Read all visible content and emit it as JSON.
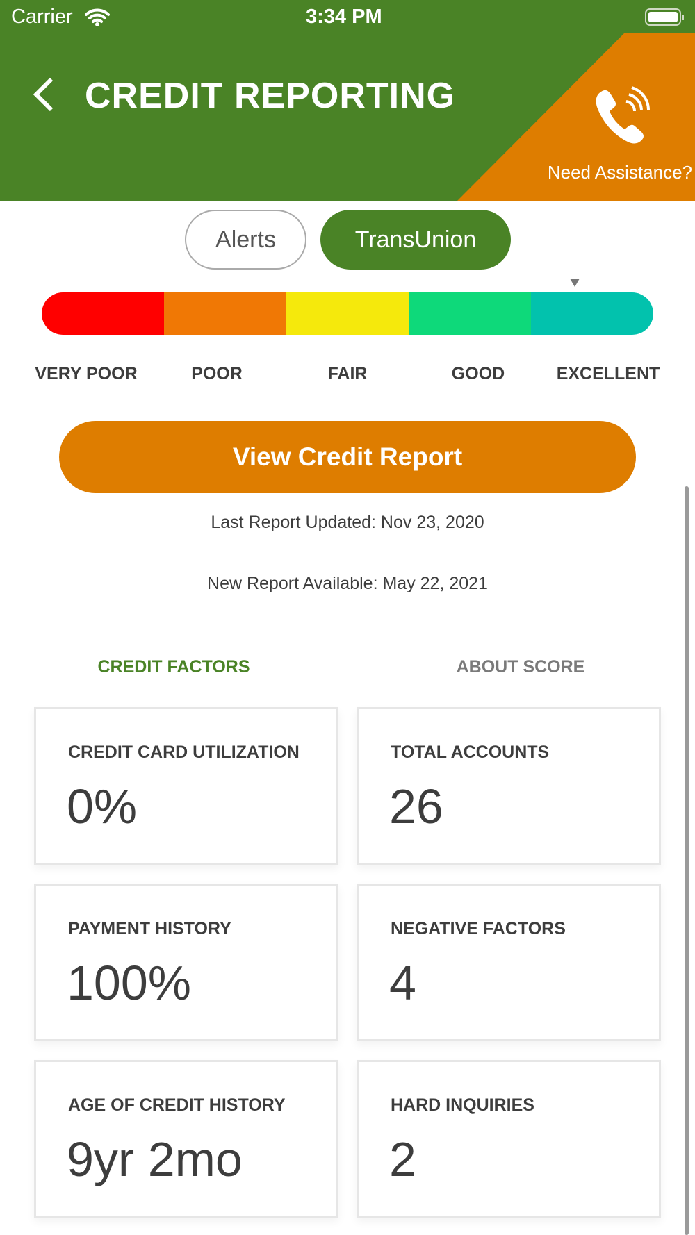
{
  "status_bar": {
    "carrier": "Carrier",
    "time": "3:34 PM"
  },
  "header": {
    "title": "CREDIT REPORTING",
    "assistance": "Need Assistance?",
    "colors": {
      "green": "#4a8326",
      "orange": "#de7d00"
    }
  },
  "tabs": [
    {
      "label": "Alerts",
      "active": false
    },
    {
      "label": "TransUnion",
      "active": true
    }
  ],
  "score_scale": {
    "levels": [
      {
        "label": "VERY POOR",
        "color": "#ff0000"
      },
      {
        "label": "POOR",
        "color": "#f07805"
      },
      {
        "label": "FAIR",
        "color": "#f5e90c"
      },
      {
        "label": "GOOD",
        "color": "#0ed97a"
      },
      {
        "label": "EXCELLENT",
        "color": "#02c2ad"
      }
    ],
    "marker_level": "EXCELLENT"
  },
  "view_button": "View Credit Report",
  "last_updated": "Last Report Updated: Nov 23, 2020",
  "new_available": "New Report Available: May 22, 2021",
  "factor_tabs": [
    {
      "label": "CREDIT FACTORS",
      "active": true
    },
    {
      "label": "ABOUT SCORE",
      "active": false
    }
  ],
  "cards": [
    {
      "label": "CREDIT CARD UTILIZATION",
      "value": "0%"
    },
    {
      "label": "TOTAL ACCOUNTS",
      "value": "26"
    },
    {
      "label": "PAYMENT HISTORY",
      "value": "100%"
    },
    {
      "label": "NEGATIVE FACTORS",
      "value": "4"
    },
    {
      "label": "AGE OF CREDIT HISTORY",
      "value": "9yr 2mo"
    },
    {
      "label": "HARD INQUIRIES",
      "value": "2"
    }
  ]
}
